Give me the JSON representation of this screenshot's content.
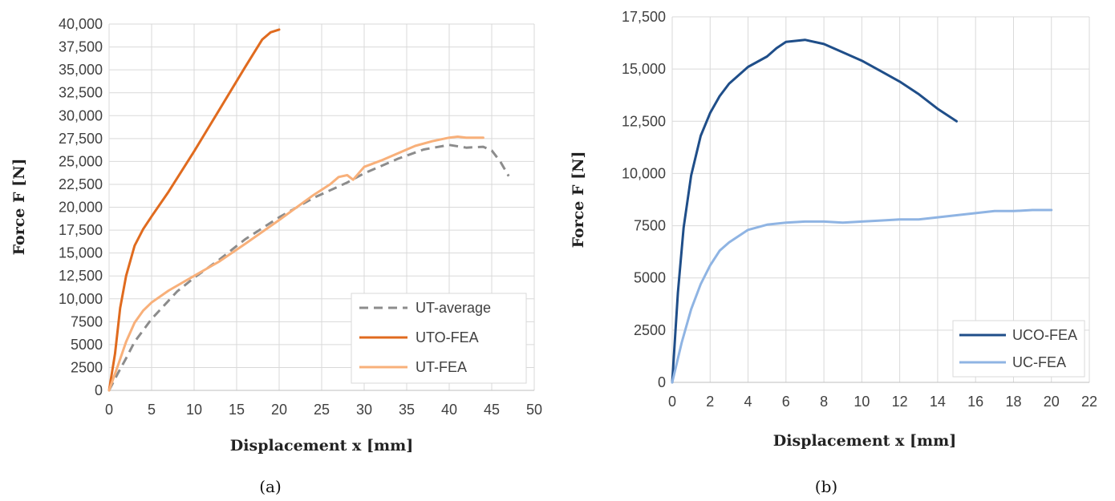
{
  "chart_data": [
    {
      "type": "line",
      "panel_label": "(a)",
      "xlabel": "Displacement x [mm]",
      "ylabel": "Force F [N]",
      "xlim": [
        0,
        50
      ],
      "ylim": [
        0,
        40000
      ],
      "x_ticks": [
        "0",
        "5",
        "10",
        "15",
        "20",
        "25",
        "30",
        "35",
        "40",
        "45",
        "50"
      ],
      "y_ticks": [
        "0",
        "2500",
        "5000",
        "7500",
        "10,000",
        "12,500",
        "15,000",
        "17,500",
        "20,000",
        "22,500",
        "25,000",
        "27,500",
        "30,000",
        "32,500",
        "35,000",
        "37,500",
        "40,000"
      ],
      "grid": true,
      "legend": "bottom-right",
      "series": [
        {
          "name": "UT-average",
          "color": "#8c8c8c",
          "dash": true,
          "points": [
            [
              0,
              0
            ],
            [
              1,
              1800
            ],
            [
              2,
              3500
            ],
            [
              3,
              5300
            ],
            [
              5,
              7800
            ],
            [
              8,
              10800
            ],
            [
              10,
              12300
            ],
            [
              13,
              14300
            ],
            [
              16,
              16500
            ],
            [
              20,
              18900
            ],
            [
              24,
              21000
            ],
            [
              28,
              22700
            ],
            [
              30,
              23700
            ],
            [
              34,
              25300
            ],
            [
              37,
              26300
            ],
            [
              40,
              26800
            ],
            [
              42,
              26500
            ],
            [
              44,
              26600
            ],
            [
              45,
              26200
            ],
            [
              46,
              25000
            ],
            [
              47,
              23400
            ]
          ]
        },
        {
          "name": "UTO-FEA",
          "color": "#e06b1f",
          "dash": false,
          "points": [
            [
              0,
              0
            ],
            [
              0.7,
              4000
            ],
            [
              1.3,
              9000
            ],
            [
              2,
              12500
            ],
            [
              3,
              15800
            ],
            [
              4,
              17600
            ],
            [
              5,
              19000
            ],
            [
              7,
              21700
            ],
            [
              10,
              26100
            ],
            [
              13,
              30700
            ],
            [
              16,
              35300
            ],
            [
              18,
              38300
            ],
            [
              19,
              39100
            ],
            [
              20,
              39400
            ]
          ]
        },
        {
          "name": "UT-FEA",
          "color": "#f8b07a",
          "dash": false,
          "points": [
            [
              0,
              0
            ],
            [
              1,
              2600
            ],
            [
              2,
              5300
            ],
            [
              3,
              7400
            ],
            [
              4,
              8700
            ],
            [
              5,
              9600
            ],
            [
              7,
              10900
            ],
            [
              10,
              12500
            ],
            [
              13,
              14100
            ],
            [
              16,
              16000
            ],
            [
              20,
              18600
            ],
            [
              24,
              21300
            ],
            [
              26,
              22500
            ],
            [
              27,
              23300
            ],
            [
              28,
              23500
            ],
            [
              28.7,
              23000
            ],
            [
              30,
              24400
            ],
            [
              32,
              25100
            ],
            [
              34,
              25900
            ],
            [
              36,
              26700
            ],
            [
              38,
              27200
            ],
            [
              40,
              27600
            ],
            [
              41,
              27700
            ],
            [
              42,
              27600
            ],
            [
              43,
              27600
            ],
            [
              44,
              27600
            ]
          ]
        }
      ]
    },
    {
      "type": "line",
      "panel_label": "(b)",
      "xlabel": "Displacement x [mm]",
      "ylabel": "Force F [N]",
      "xlim": [
        0,
        22
      ],
      "ylim": [
        0,
        17500
      ],
      "x_ticks": [
        "0",
        "2",
        "4",
        "6",
        "8",
        "10",
        "12",
        "14",
        "16",
        "18",
        "20",
        "22"
      ],
      "y_ticks": [
        "0",
        "2500",
        "5000",
        "7500",
        "10,000",
        "12,500",
        "15,000",
        "17,500"
      ],
      "grid": true,
      "legend": "bottom-right",
      "series": [
        {
          "name": "UCO-FEA",
          "color": "#1f4e89",
          "dash": false,
          "points": [
            [
              0,
              0
            ],
            [
              0.3,
              4300
            ],
            [
              0.6,
              7400
            ],
            [
              1,
              9900
            ],
            [
              1.5,
              11800
            ],
            [
              2,
              12900
            ],
            [
              2.5,
              13700
            ],
            [
              3,
              14300
            ],
            [
              4,
              15100
            ],
            [
              5,
              15600
            ],
            [
              5.5,
              16000
            ],
            [
              6,
              16300
            ],
            [
              7,
              16400
            ],
            [
              8,
              16200
            ],
            [
              9,
              15800
            ],
            [
              10,
              15400
            ],
            [
              11,
              14900
            ],
            [
              12,
              14400
            ],
            [
              13,
              13800
            ],
            [
              14,
              13100
            ],
            [
              15,
              12500
            ]
          ]
        },
        {
          "name": "UC-FEA",
          "color": "#8fb4e3",
          "dash": false,
          "points": [
            [
              0,
              0
            ],
            [
              0.5,
              1900
            ],
            [
              1,
              3500
            ],
            [
              1.5,
              4700
            ],
            [
              2,
              5600
            ],
            [
              2.5,
              6300
            ],
            [
              3,
              6700
            ],
            [
              4,
              7300
            ],
            [
              5,
              7550
            ],
            [
              6,
              7650
            ],
            [
              7,
              7700
            ],
            [
              8,
              7700
            ],
            [
              9,
              7650
            ],
            [
              10,
              7700
            ],
            [
              11,
              7750
            ],
            [
              12,
              7800
            ],
            [
              13,
              7800
            ],
            [
              14,
              7900
            ],
            [
              15,
              8000
            ],
            [
              16,
              8100
            ],
            [
              17,
              8200
            ],
            [
              18,
              8200
            ],
            [
              19,
              8250
            ],
            [
              20,
              8250
            ]
          ]
        }
      ]
    }
  ]
}
